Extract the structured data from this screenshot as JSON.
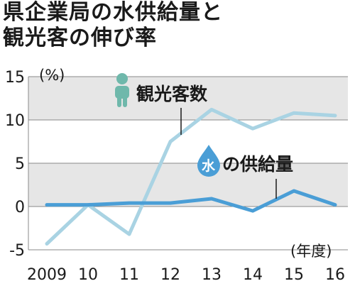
{
  "title": {
    "line1": "県企業局の水供給量と",
    "line2": "観光客の伸び率"
  },
  "colors": {
    "tourists": "#a9d3e3",
    "water": "#4a9ed6",
    "band": "#e6e6e6",
    "grid": "#8a8a8a",
    "tourist_icon": "#6fb8ab"
  },
  "chart_data": {
    "type": "line",
    "x": [
      "2009",
      "10",
      "11",
      "12",
      "13",
      "14",
      "15",
      "16"
    ],
    "y_unit": "(%)",
    "x_unit": "(年度)",
    "ylim": [
      -5,
      15
    ],
    "y_ticks": [
      "15",
      "10",
      "5",
      "0",
      "-5"
    ],
    "grid": true,
    "series": [
      {
        "name": "観光客数",
        "icon": "person-icon",
        "values": [
          -4.3,
          0.2,
          -3.2,
          7.5,
          11.2,
          9.0,
          10.8,
          10.5
        ]
      },
      {
        "name": "の供給量",
        "icon_text": "水",
        "icon": "water-drop-icon",
        "values": [
          0.2,
          0.2,
          0.4,
          0.4,
          0.9,
          -0.5,
          1.8,
          0.2
        ]
      }
    ]
  }
}
